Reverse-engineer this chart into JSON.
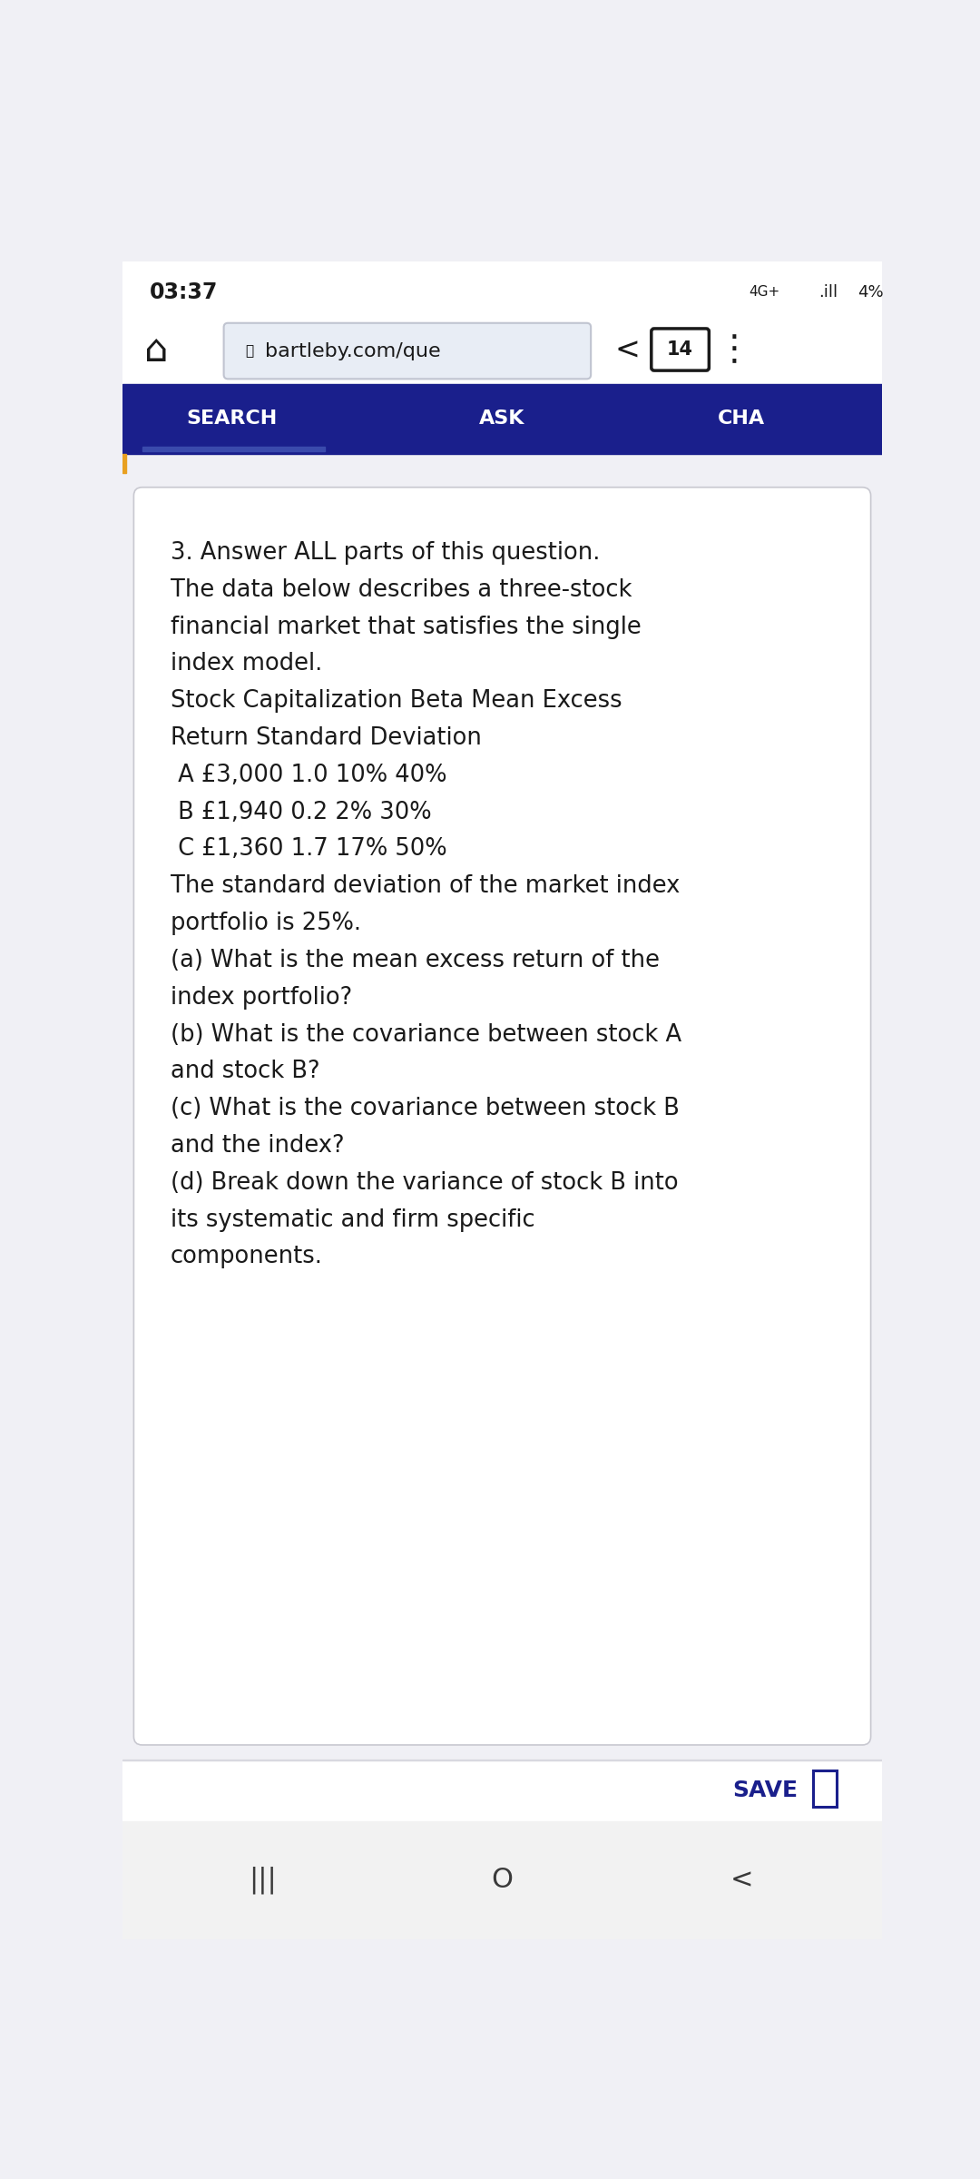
{
  "bg_color": "#f0f0f5",
  "status_bar_bg": "#ffffff",
  "status_time": "03:37",
  "nav_bar_bg": "#1a1f8c",
  "nav_items": [
    "SEARCH",
    "ASK",
    "CHA"
  ],
  "card_bg": "#ffffff",
  "card_border_color": "#c8c8d0",
  "card_text_color": "#1a1a1a",
  "card_font_size": 18.5,
  "card_lines": [
    "3. Answer ALL parts of this question.",
    "The data below describes a three-stock",
    "financial market that satisfies the single",
    "index model.",
    "Stock Capitalization Beta Mean Excess",
    "Return Standard Deviation",
    " A £3,000 1.0 10% 40%",
    " B £1,940 0.2 2% 30%",
    " C £1,360 1.7 17% 50%",
    "The standard deviation of the market index",
    "portfolio is 25%.",
    "(a) What is the mean excess return of the",
    "index portfolio?",
    "(b) What is the covariance between stock A",
    "and stock B?",
    "(c) What is the covariance between stock B",
    "and the index?",
    "(d) Break down the variance of stock B into",
    "its systematic and firm specific",
    "components."
  ],
  "bottom_bar_bg": "#ffffff",
  "save_text": "SAVE",
  "save_color": "#1a1f8c",
  "url_text": "bartleby.com/que",
  "tab_num": "14",
  "orange_accent": "#e8a020"
}
